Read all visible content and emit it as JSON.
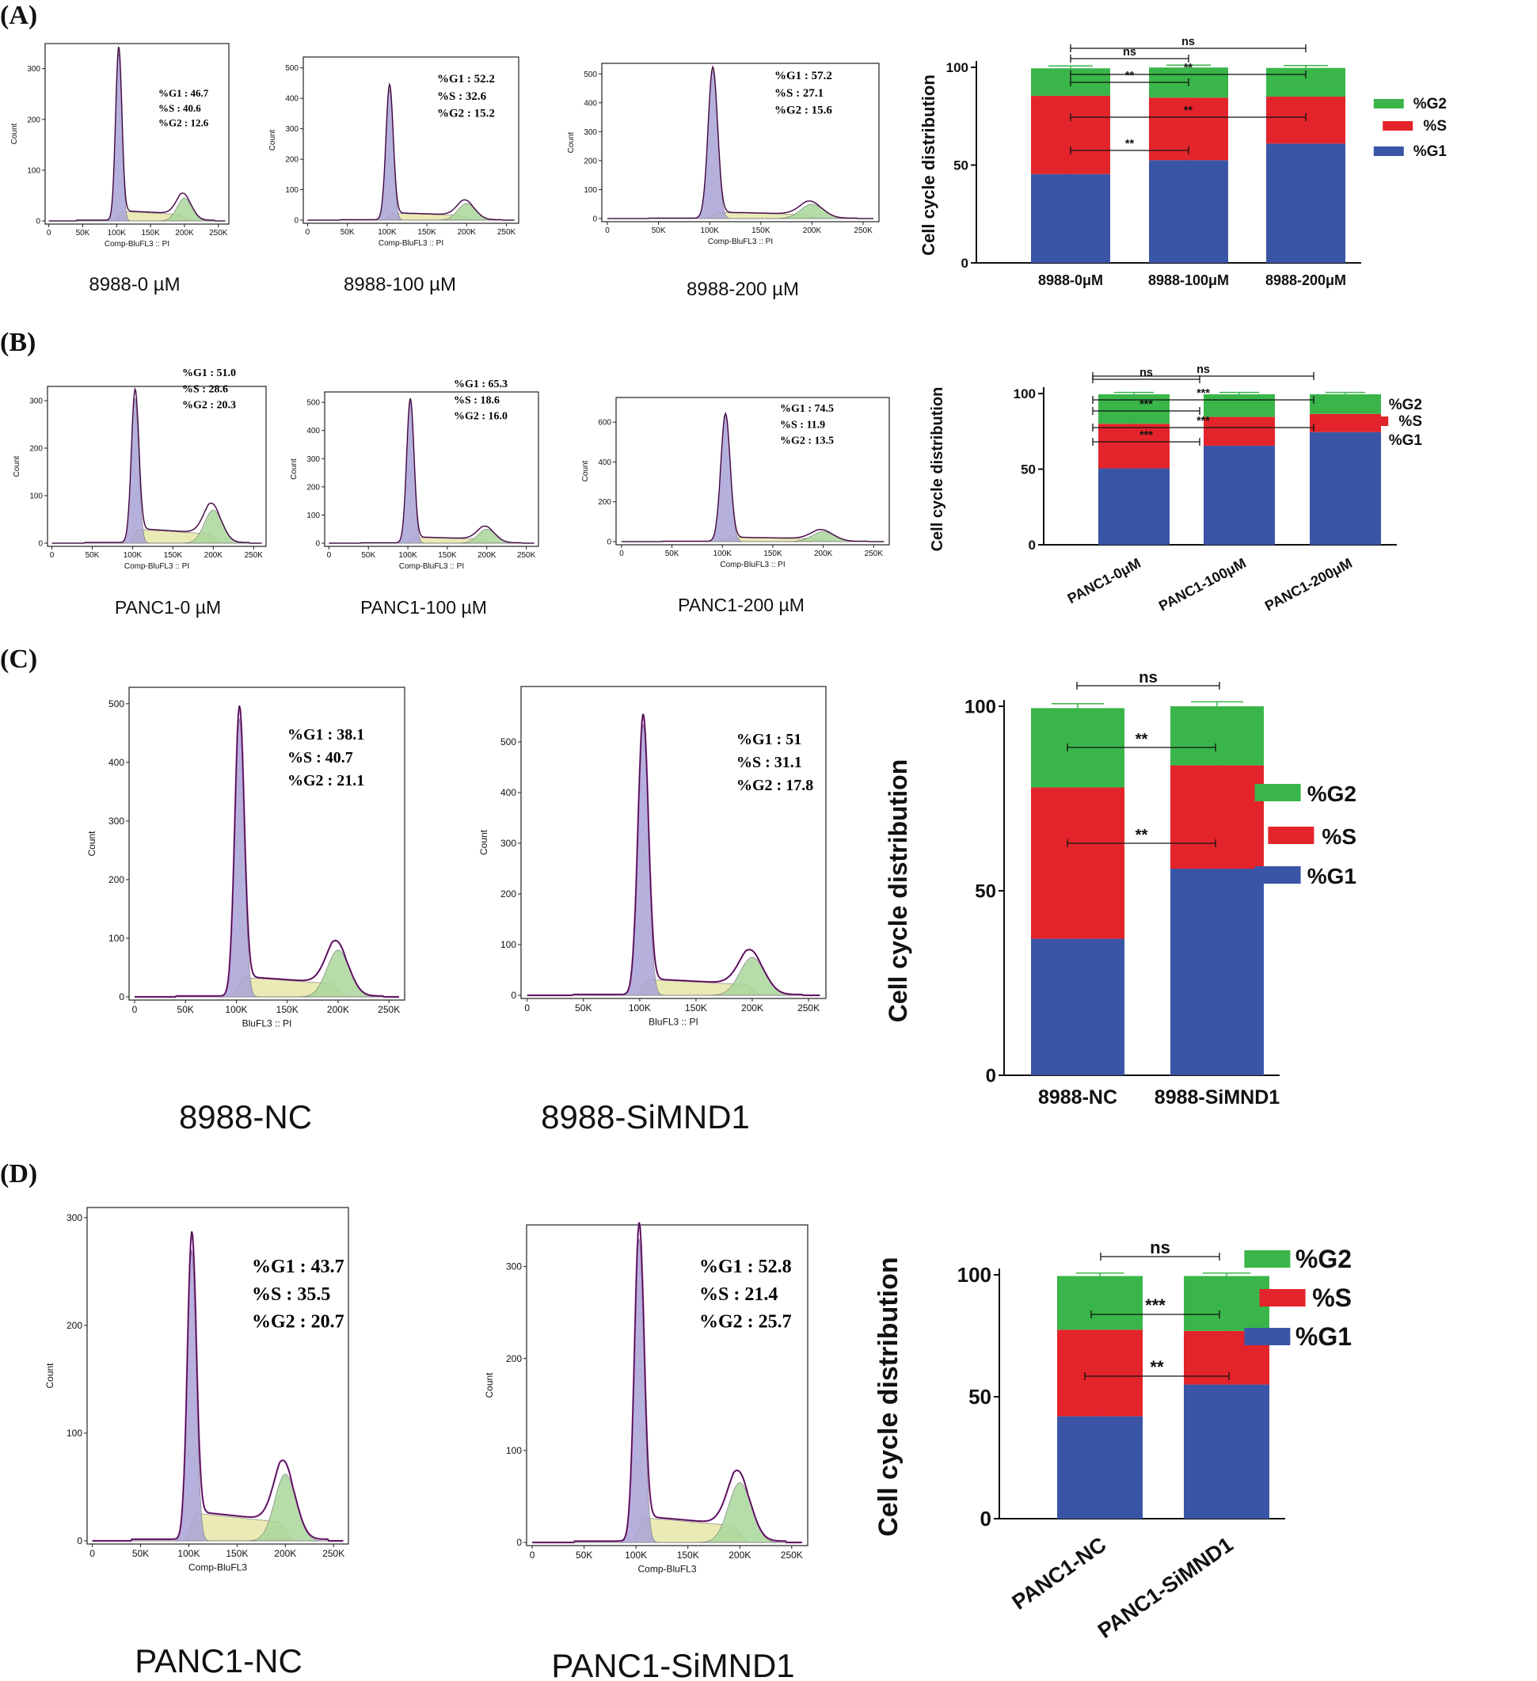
{
  "panels": [
    {
      "label": "(A)",
      "histograms": [
        {
          "caption": "8988-0 µM",
          "g1": "%G1 : 46.7",
          "s": "%S : 40.6",
          "g2": "%G2 : 12.6",
          "yticks": [
            "0",
            "100",
            "200",
            "300"
          ],
          "ymax": 340,
          "g1peak": 330,
          "g2peak": 45,
          "xlabel": "Comp-BluFL3 :: PI",
          "ylabel": "Count"
        },
        {
          "caption": "8988-100 µM",
          "g1": "%G1 : 52.2",
          "s": "%S : 32.6",
          "g2": "%G2 : 15.2",
          "yticks": [
            "0",
            "100",
            "200",
            "300",
            "400",
            "500"
          ],
          "ymax": 520,
          "g1peak": 430,
          "g2peak": 55,
          "xlabel": "Comp-BluFL3 :: PI",
          "ylabel": "Count"
        },
        {
          "caption": "8988-200 µM",
          "g1": "%G1 : 57.2",
          "s": "%S : 27.1",
          "g2": "%G2 : 15.6",
          "yticks": [
            "0",
            "100",
            "200",
            "300",
            "400",
            "500"
          ],
          "ymax": 520,
          "g1peak": 510,
          "g2peak": 50,
          "xlabel": "Comp-BluFL3 :: PI",
          "ylabel": "Count"
        }
      ]
    },
    {
      "label": "(B)",
      "histograms": [
        {
          "caption": "PANC1-0 µM",
          "g1": "%G1 : 51.0",
          "s": "%S : 28.6",
          "g2": "%G2 : 20.3",
          "yticks": [
            "0",
            "100",
            "200",
            "300"
          ],
          "ymax": 320,
          "g1peak": 305,
          "g2peak": 70,
          "xlabel": "Comp-BluFL3 :: PI",
          "ylabel": "Count"
        },
        {
          "caption": "PANC1-100 µM",
          "g1": "%G1 : 65.3",
          "s": "%S : 18.6",
          "g2": "%G2 : 16.0",
          "yticks": [
            "0",
            "100",
            "200",
            "300",
            "400",
            "500"
          ],
          "ymax": 520,
          "g1peak": 500,
          "g2peak": 50,
          "xlabel": "Comp-BluFL3 :: PI",
          "ylabel": "Count"
        },
        {
          "caption": "PANC1-200 µM",
          "g1": "%G1 : 74.5",
          "s": "%S : 11.9",
          "g2": "%G2 : 13.5",
          "yticks": [
            "0",
            "200",
            "400",
            "600"
          ],
          "ymax": 700,
          "g1peak": 630,
          "g2peak": 50,
          "xlabel": "Comp-BluFL3 :: PI",
          "ylabel": "Count"
        }
      ]
    },
    {
      "label": "(C)",
      "histograms": [
        {
          "caption": "8988-NC",
          "g1": "%G1 : 38.1",
          "s": "%S : 40.7",
          "g2": "%G2 : 21.1",
          "yticks": [
            "0",
            "100",
            "200",
            "300",
            "400",
            "500"
          ],
          "ymax": 520,
          "g1peak": 475,
          "g2peak": 80,
          "xlabel": "BluFL3 :: PI",
          "ylabel": "Count"
        },
        {
          "caption": "8988-SiMND1",
          "g1": "%G1 : 51",
          "s": "%S : 31.1",
          "g2": "%G2 : 17.8",
          "yticks": [
            "0",
            "100",
            "200",
            "300",
            "400",
            "500"
          ],
          "ymax": 600,
          "g1peak": 535,
          "g2peak": 75,
          "xlabel": "BluFL3 :: PI",
          "ylabel": "Count"
        }
      ]
    },
    {
      "label": "(D)",
      "histograms": [
        {
          "caption": "PANC1-NC",
          "g1": "%G1 : 43.7",
          "s": "%S : 35.5",
          "g2": "%G2 : 20.7",
          "yticks": [
            "0",
            "100",
            "200",
            "300"
          ],
          "ymax": 305,
          "g1peak": 270,
          "g2peak": 62,
          "xlabel": "Comp-BluFL3",
          "ylabel": "Count"
        },
        {
          "caption": "PANC1-SiMND1",
          "g1": "%G1 : 52.8",
          "s": "%S : 21.4",
          "g2": "%G2 : 25.7",
          "yticks": [
            "0",
            "100",
            "200",
            "300"
          ],
          "ymax": 340,
          "g1peak": 330,
          "g2peak": 65,
          "xlabel": "Comp-BluFL3",
          "ylabel": "Count"
        }
      ]
    }
  ],
  "hist_xticks": [
    "0",
    "50K",
    "100K",
    "150K",
    "200K",
    "250K"
  ],
  "colors": {
    "G1": "#3a55a6",
    "S": "#e3242b",
    "G2": "#3ab54a",
    "g1fill": "#a8a3d6",
    "sfill": "#e6e6a8",
    "g2fill": "#a9d69a",
    "fitline": "#b02fb5"
  },
  "chart_data": [
    {
      "type": "bar",
      "stacked": true,
      "title": "",
      "ylabel": "Cell cycle distribution",
      "ylim": [
        0,
        100
      ],
      "yticks": [
        "0",
        "50",
        "100"
      ],
      "categories": [
        "8988-0μM",
        "8988-100μM",
        "8988-200μM"
      ],
      "series": [
        {
          "name": "%G1",
          "values": [
            45.4,
            52.5,
            61.0
          ]
        },
        {
          "name": "%S",
          "values": [
            40.0,
            32.0,
            24.0
          ]
        },
        {
          "name": "%G2",
          "values": [
            14.1,
            15.4,
            14.7
          ]
        }
      ],
      "legend": [
        "%G2",
        "%S",
        "%G1"
      ],
      "annotations": [
        "ns",
        "**",
        "**",
        "**",
        "**"
      ]
    },
    {
      "type": "bar",
      "stacked": true,
      "title": "",
      "ylabel": "Cell cycle distribution",
      "ylim": [
        0,
        100
      ],
      "yticks": [
        "0",
        "50",
        "100"
      ],
      "categories": [
        "PANC1-0μM",
        "PANC1-100μM",
        "PANC1-200μM"
      ],
      "series": [
        {
          "name": "%G1",
          "values": [
            50.5,
            65.5,
            74.5
          ]
        },
        {
          "name": "%S",
          "values": [
            29.5,
            19.0,
            12.0
          ]
        },
        {
          "name": "%G2",
          "values": [
            19.5,
            15.0,
            13.0
          ]
        }
      ],
      "legend": [
        "%G2",
        "%S",
        "%G1"
      ],
      "annotations": [
        "ns",
        "ns",
        "***",
        "***",
        "***",
        "***",
        "***"
      ]
    },
    {
      "type": "bar",
      "stacked": true,
      "title": "",
      "ylabel": "Cell cycle distribution",
      "ylim": [
        0,
        100
      ],
      "yticks": [
        "0",
        "50",
        "100"
      ],
      "categories": [
        "8988-NC",
        "8988-SiMND1"
      ],
      "series": [
        {
          "name": "%G1",
          "values": [
            37.0,
            56.0
          ]
        },
        {
          "name": "%S",
          "values": [
            41.0,
            28.0
          ]
        },
        {
          "name": "%G2",
          "values": [
            21.5,
            16.0
          ]
        }
      ],
      "legend": [
        "%G2",
        "%S",
        "%G1"
      ],
      "annotations": [
        "ns",
        "**",
        "**"
      ]
    },
    {
      "type": "bar",
      "stacked": true,
      "title": "",
      "ylabel": "Cell cycle distribution",
      "ylim": [
        0,
        100
      ],
      "yticks": [
        "0",
        "50",
        "100"
      ],
      "categories": [
        "PANC1-NC",
        "PANC1-SiMND1"
      ],
      "series": [
        {
          "name": "%G1",
          "values": [
            42.0,
            55.0
          ]
        },
        {
          "name": "%S",
          "values": [
            35.5,
            22.0
          ]
        },
        {
          "name": "%G2",
          "values": [
            22.0,
            22.5
          ]
        }
      ],
      "legend": [
        "%G2",
        "%S",
        "%G1"
      ],
      "annotations": [
        "ns",
        "***",
        "**"
      ]
    }
  ]
}
